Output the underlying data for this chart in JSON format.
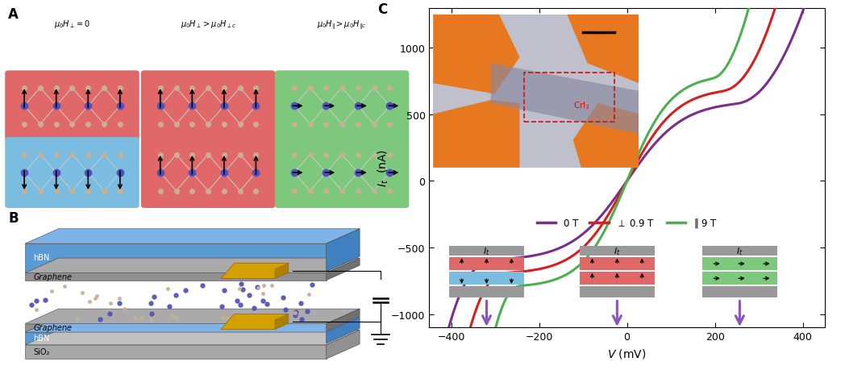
{
  "panel_A_labels": [
    "$\\mu_0H_\\perp = 0$",
    "$\\mu_0H_\\perp > \\mu_0H_{\\perp c}$",
    "$\\mu_0H_\\| > \\mu_0H_{\\|c}$"
  ],
  "xlabel": "$V$ (mV)",
  "ylabel": "$I_t$  (nA)",
  "legend_labels": [
    "0 T",
    "$\\perp$ 0.9 T",
    "$\\|$ 9 T"
  ],
  "legend_colors": [
    "#7B2D8B",
    "#D42020",
    "#4CAF50"
  ],
  "ylim": [
    -1100,
    1300
  ],
  "xlim": [
    -450,
    450
  ],
  "yticks": [
    -1000,
    -500,
    0,
    500,
    1000
  ],
  "xticks": [
    -400,
    -200,
    0,
    200,
    400
  ],
  "bg_color": "#FFFFFF",
  "panel_A_red": "#E06868",
  "panel_A_blue": "#7ABDE0",
  "panel_A_green": "#7DC87D"
}
